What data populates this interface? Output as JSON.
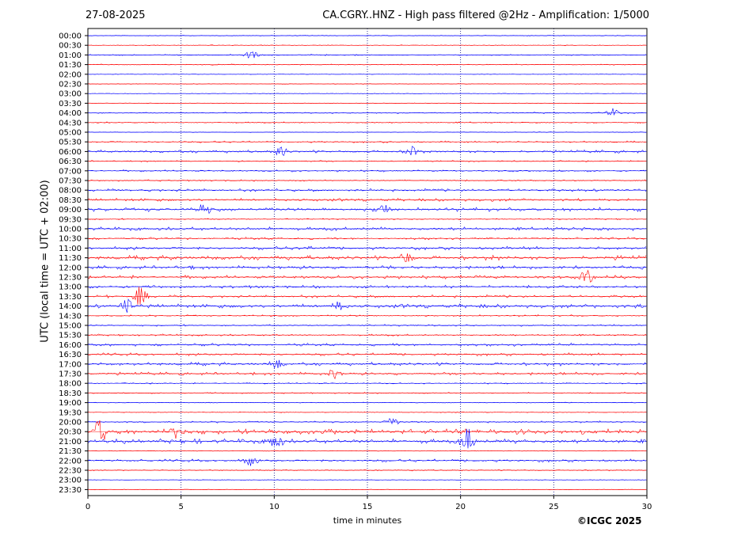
{
  "header": {
    "date": "27-08-2025",
    "title": "CA.CGRY..HNZ - High pass filtered @2Hz - Amplification: 1/5000"
  },
  "footer": {
    "copyright": "©ICGC 2025"
  },
  "chart_data": {
    "type": "line",
    "title": "CA.CGRY..HNZ - High pass filtered @2Hz - Amplification: 1/5000",
    "xlabel": "time in minutes",
    "ylabel": "UTC (local time = UTC + 02:00)",
    "xlim": [
      0,
      30
    ],
    "x_ticks": [
      0,
      5,
      10,
      15,
      20,
      25,
      30
    ],
    "vertical_gridlines_at": [
      5,
      10,
      15,
      20,
      25
    ],
    "rows": [
      "00:00",
      "00:30",
      "01:00",
      "01:30",
      "02:00",
      "02:30",
      "03:00",
      "03:30",
      "04:00",
      "04:30",
      "05:00",
      "05:30",
      "06:00",
      "06:30",
      "07:00",
      "07:30",
      "08:00",
      "08:30",
      "09:00",
      "09:30",
      "10:00",
      "10:30",
      "11:00",
      "11:30",
      "12:00",
      "12:30",
      "13:00",
      "13:30",
      "14:00",
      "14:30",
      "15:00",
      "15:30",
      "16:00",
      "16:30",
      "17:00",
      "17:30",
      "18:00",
      "18:30",
      "19:00",
      "19:30",
      "20:00",
      "20:30",
      "21:00",
      "21:30",
      "22:00",
      "22:30",
      "23:00",
      "23:30"
    ],
    "trace_colors": [
      "#0000ff",
      "#ff0000"
    ],
    "activity_level": [
      0.1,
      0.1,
      0.2,
      0.15,
      0.05,
      0.05,
      0.05,
      0.05,
      0.2,
      0.2,
      0.05,
      0.3,
      0.5,
      0.2,
      0.3,
      0.25,
      0.5,
      0.5,
      0.7,
      0.2,
      0.6,
      0.4,
      0.6,
      0.8,
      0.6,
      0.6,
      0.5,
      0.5,
      0.7,
      0.3,
      0.3,
      0.3,
      0.5,
      0.5,
      0.6,
      0.5,
      0.2,
      0.2,
      0.1,
      0.1,
      0.3,
      0.9,
      0.8,
      0.05,
      0.5,
      0.2,
      0.05,
      0.05
    ],
    "events": [
      {
        "row": "01:00",
        "t": 8.8,
        "a": 0.5
      },
      {
        "row": "04:00",
        "t": 28.2,
        "a": 0.5
      },
      {
        "row": "06:00",
        "t": 10.4,
        "a": 0.6
      },
      {
        "row": "06:00",
        "t": 17.4,
        "a": 0.6
      },
      {
        "row": "09:00",
        "t": 6.2,
        "a": 0.7
      },
      {
        "row": "09:00",
        "t": 15.8,
        "a": 0.8
      },
      {
        "row": "11:30",
        "t": 17.1,
        "a": 0.7
      },
      {
        "row": "12:30",
        "t": 26.8,
        "a": 0.8
      },
      {
        "row": "13:30",
        "t": 2.8,
        "a": 1.2
      },
      {
        "row": "14:00",
        "t": 2.1,
        "a": 0.9
      },
      {
        "row": "14:00",
        "t": 13.5,
        "a": 0.5
      },
      {
        "row": "17:00",
        "t": 10.1,
        "a": 0.6
      },
      {
        "row": "17:30",
        "t": 13.2,
        "a": 0.6
      },
      {
        "row": "20:00",
        "t": 16.3,
        "a": 0.6
      },
      {
        "row": "20:30",
        "t": 0.6,
        "a": 1.5
      },
      {
        "row": "20:30",
        "t": 4.8,
        "a": 1.1
      },
      {
        "row": "21:00",
        "t": 10.1,
        "a": 0.9
      },
      {
        "row": "21:00",
        "t": 20.4,
        "a": 1.4
      },
      {
        "row": "22:00",
        "t": 8.7,
        "a": 0.6
      }
    ]
  }
}
